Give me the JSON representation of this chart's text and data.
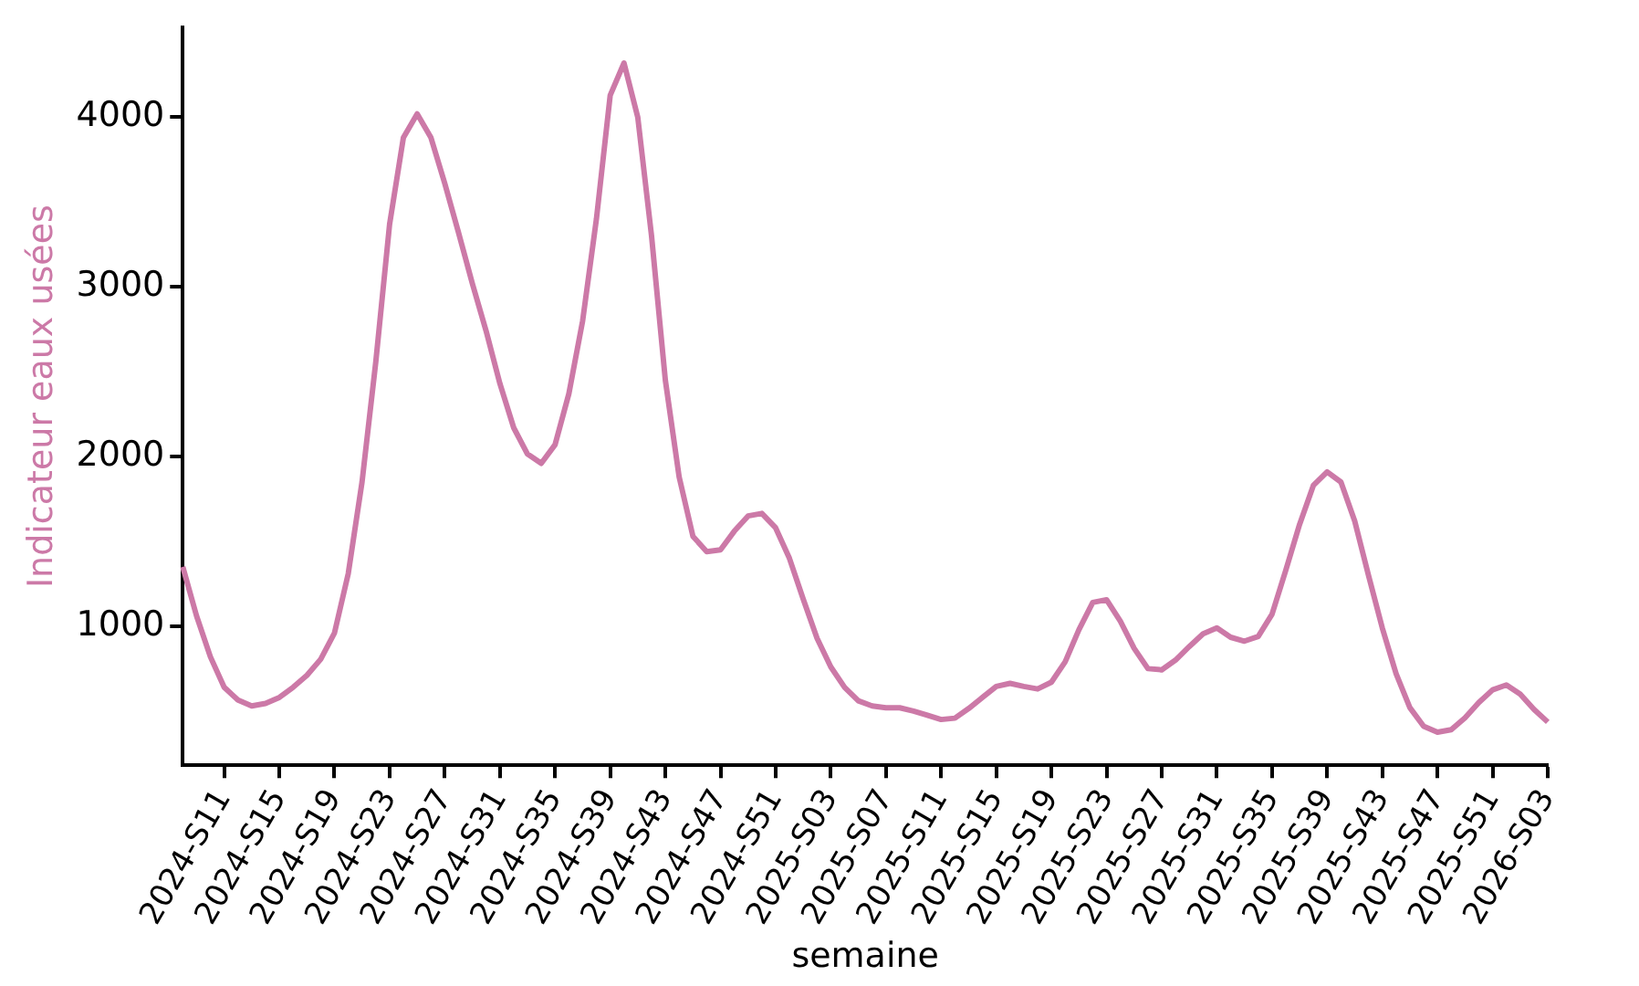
{
  "chart_data": {
    "type": "line",
    "xlabel": "semaine",
    "ylabel": "Indicateur eaux usées",
    "categories": [
      null,
      null,
      null,
      "2024-S11",
      null,
      null,
      null,
      "2024-S15",
      null,
      null,
      null,
      "2024-S19",
      null,
      null,
      null,
      "2024-S23",
      null,
      null,
      null,
      "2024-S27",
      null,
      null,
      null,
      "2024-S31",
      null,
      null,
      null,
      "2024-S35",
      null,
      null,
      null,
      "2024-S39",
      null,
      null,
      null,
      "2024-S43",
      null,
      null,
      null,
      "2024-S47",
      null,
      null,
      null,
      "2024-S51",
      null,
      null,
      null,
      "2025-S03",
      null,
      null,
      null,
      "2025-S07",
      null,
      null,
      null,
      "2025-S11",
      null,
      null,
      null,
      "2025-S15",
      null,
      null,
      null,
      "2025-S19",
      null,
      null,
      null,
      "2025-S23",
      null,
      null,
      null,
      "2025-S27",
      null,
      null,
      null,
      "2025-S31",
      null,
      null,
      null,
      "2025-S35",
      null,
      null,
      null,
      "2025-S39",
      null,
      null,
      null,
      "2025-S43",
      null,
      null,
      null,
      "2025-S47",
      null,
      null,
      null,
      "2025-S51",
      null,
      null,
      null,
      "2026-S03"
    ],
    "series": [
      {
        "color": "#cc79a7",
        "values": [
          1350,
          1060,
          820,
          640,
          565,
          530,
          545,
          580,
          640,
          710,
          805,
          960,
          1310,
          1850,
          2560,
          3370,
          3880,
          4020,
          3880,
          3610,
          3320,
          3020,
          2740,
          2430,
          2170,
          2015,
          1960,
          2070,
          2370,
          2800,
          3400,
          4130,
          4320,
          4000,
          3300,
          2450,
          1880,
          1530,
          1440,
          1450,
          1560,
          1650,
          1665,
          1580,
          1400,
          1160,
          930,
          760,
          640,
          560,
          530,
          519,
          519,
          500,
          475,
          450,
          458,
          515,
          580,
          645,
          663,
          645,
          630,
          670,
          790,
          980,
          1140,
          1156,
          1030,
          870,
          750,
          743,
          800,
          880,
          955,
          990,
          935,
          912,
          940,
          1070,
          1330,
          1600,
          1830,
          1910,
          1850,
          1620,
          1300,
          990,
          720,
          520,
          410,
          375,
          390,
          460,
          550,
          625,
          654,
          600,
          510,
          435
        ]
      }
    ],
    "ylim": [
      180,
      4530
    ],
    "yticks": [
      1000,
      2000,
      3000,
      4000
    ],
    "grid": false,
    "legend": false
  }
}
